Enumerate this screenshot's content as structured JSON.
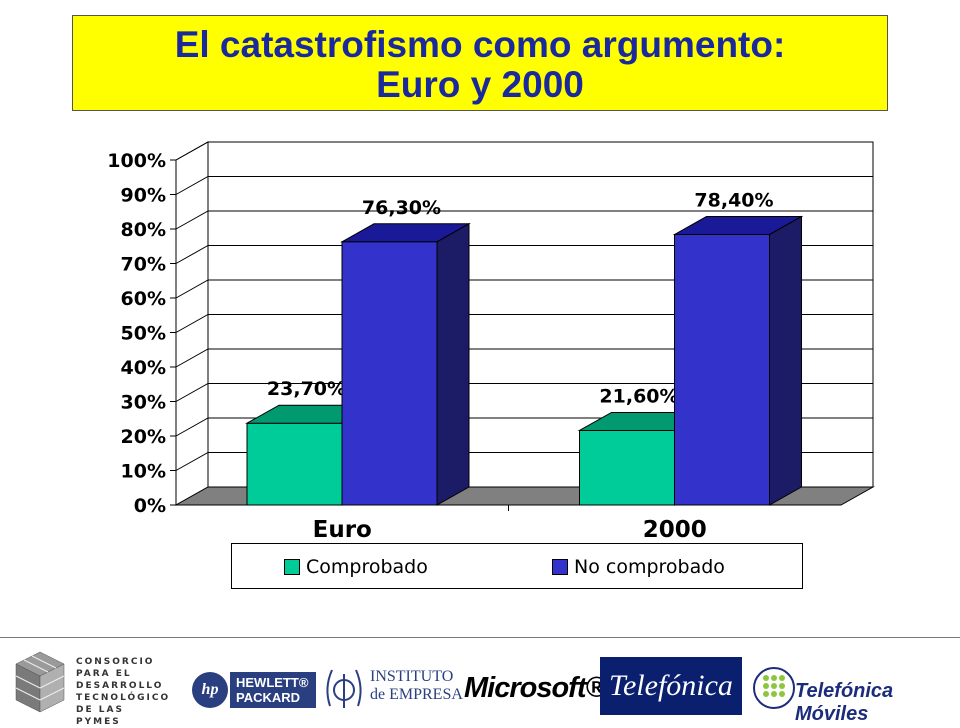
{
  "header": {
    "title_line1": "El catastrofismo como argumento:",
    "title_line2": "Euro y 2000"
  },
  "chart_data": {
    "type": "bar",
    "title": "El catastrofismo como argumento: Euro y 2000",
    "categories": [
      "Euro",
      "2000"
    ],
    "series": [
      {
        "name": "Comprobado",
        "values": [
          23.7,
          21.6
        ],
        "labels": [
          "23,70%",
          "21,60%"
        ],
        "color": "#00cc99",
        "top_color": "#009970",
        "side_color": "#007a58"
      },
      {
        "name": "No comprobado",
        "values": [
          76.3,
          78.4
        ],
        "labels": [
          "76,30%",
          "78,40%"
        ],
        "color": "#3333cc",
        "top_color": "#1a1a99",
        "side_color": "#1c1c66"
      }
    ],
    "ylim": [
      0,
      100
    ],
    "yticks": [
      "0%",
      "10%",
      "20%",
      "30%",
      "40%",
      "50%",
      "60%",
      "70%",
      "80%",
      "90%",
      "100%"
    ],
    "grid": true,
    "legend_position": "bottom",
    "floor_color": "#808080"
  },
  "footer": {
    "consorcio_lines": [
      "CONSORCIO",
      "PARA EL",
      "DESARROLLO",
      "TECNOLÓGICO",
      "DE LAS PYMES"
    ],
    "hp_mark": "hp",
    "hp_name": "HEWLETT® PACKARD",
    "ie_line1": "INSTITUTO",
    "ie_line2": "de EMPRESA",
    "microsoft": "Microsoft®",
    "telefonica": "Telefónica",
    "telefonica_moviles": "Telefónica Móviles"
  }
}
